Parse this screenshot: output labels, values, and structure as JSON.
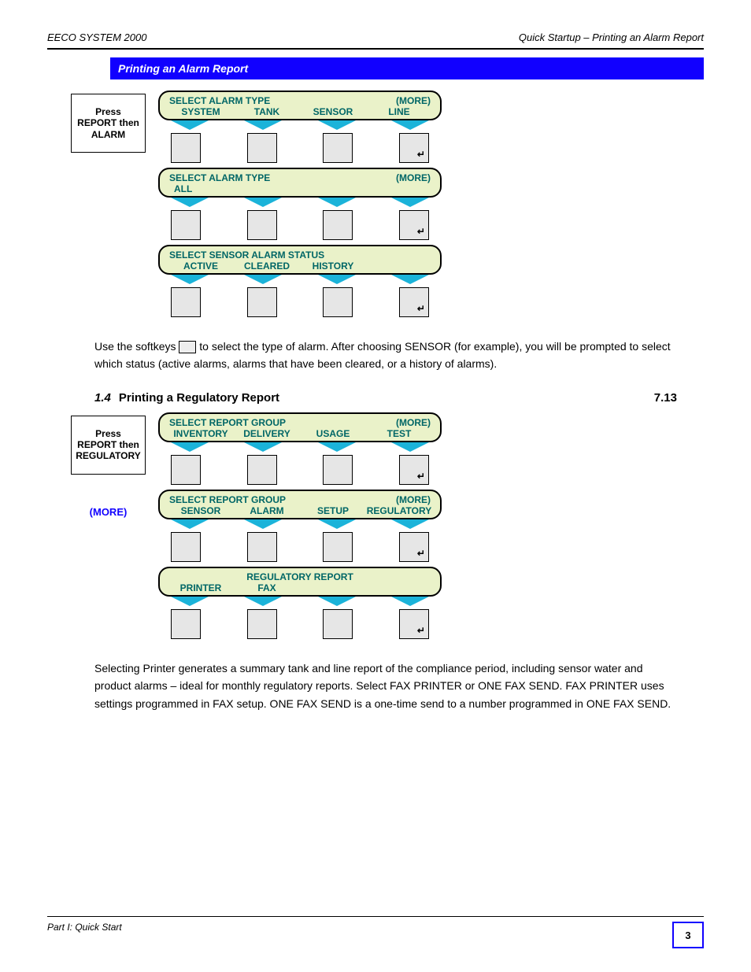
{
  "header": {
    "left": "EECO SYSTEM 2000",
    "right": "Quick Startup – Printing an Alarm Report"
  },
  "bluebar": "Printing an Alarm Report",
  "sidebox1": "Press REPORT then ALARM",
  "screens1": [
    {
      "title": "SELECT ALARM TYPE",
      "more": "(MORE)",
      "cells": [
        "SYSTEM",
        "TANK",
        "SENSOR",
        "LINE"
      ],
      "ret": "↵"
    },
    {
      "title": "SELECT ALARM TYPE",
      "more": "(MORE)",
      "cells": [
        "ALL",
        "",
        "",
        ""
      ],
      "ret": "↵"
    },
    {
      "title": "SELECT SENSOR ALARM STATUS",
      "more": "",
      "cells": [
        "ACTIVE",
        "CLEARED",
        "HISTORY",
        ""
      ],
      "ret": "↵"
    }
  ],
  "para1_a": "Use the softkeys",
  "para1_b": "to select the type of alarm. After choosing SENSOR (for example), you will be prompted to select which status (active alarms, alarms that have been cleared, or a history of alarms).",
  "heading2": {
    "num": "1.4",
    "title": "Printing a Regulatory Report",
    "ref": "7.13"
  },
  "sidebox2": "Press REPORT then REGULATORY",
  "more_link": "(MORE)",
  "screens2": [
    {
      "title": "SELECT REPORT GROUP",
      "more": "(MORE)",
      "cells": [
        "INVENTORY",
        "DELIVERY",
        "USAGE",
        "TEST"
      ],
      "ret": "↵"
    },
    {
      "title": "SELECT REPORT GROUP",
      "more": "(MORE)",
      "cells": [
        "SENSOR",
        "ALARM",
        "SETUP",
        "REGULATORY"
      ],
      "ret": "↵"
    },
    {
      "title": "REGULATORY REPORT",
      "centered": true,
      "more": "",
      "cells": [
        "PRINTER",
        "FAX",
        "",
        ""
      ],
      "ret": "↵"
    }
  ],
  "para2": "Selecting Printer generates a summary tank and line report of the compliance period, including sensor water and product alarms – ideal for monthly regulatory reports. Select FAX PRINTER or ONE FAX SEND. FAX PRINTER uses settings programmed in FAX setup. ONE FAX SEND is a one-time send to a number programmed in ONE FAX SEND.",
  "footer": "Part I: Quick Start",
  "page": "3",
  "colors": {
    "blue": "#1100ff",
    "teal": "#066",
    "arrow": "#1bb3d9",
    "lcd_bg": "#eaf2c9",
    "btn_bg": "#e6e6e6"
  }
}
